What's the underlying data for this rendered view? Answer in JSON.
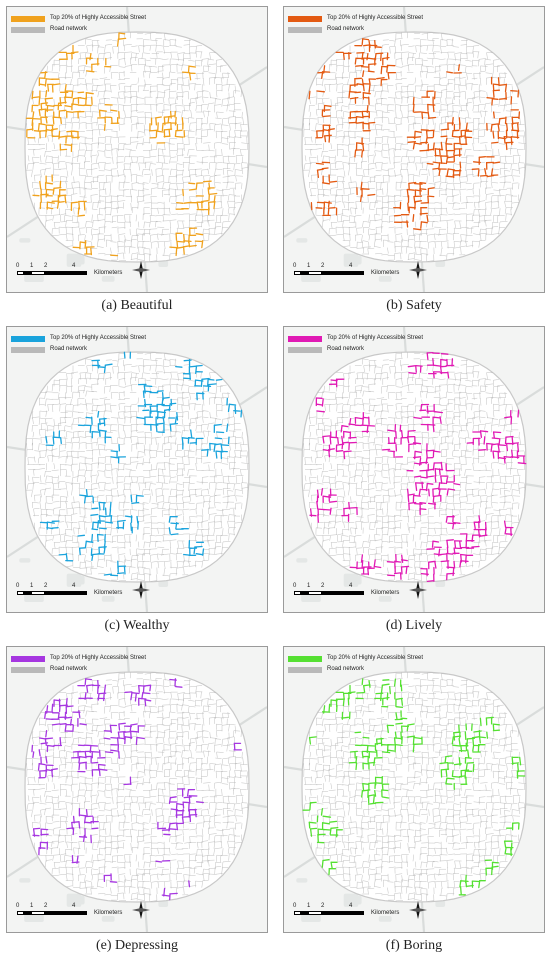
{
  "legend": {
    "top_label": "Top 20% of Highly Accessible Street",
    "road_label": "Road network"
  },
  "scale": {
    "ticks": [
      "0",
      "1",
      "2",
      "4"
    ],
    "unit": "Kilometers"
  },
  "colors": {
    "road": "#b9b9b9",
    "background": "#f3f4f3"
  },
  "panels": [
    {
      "caption": "(a) Beautiful",
      "highlight_color": "#f0a21e",
      "seed": 11
    },
    {
      "caption": "(b) Safety",
      "highlight_color": "#e35a12",
      "seed": 23
    },
    {
      "caption": "(c) Wealthy",
      "highlight_color": "#1aa3dc",
      "seed": 37
    },
    {
      "caption": "(d) Lively",
      "highlight_color": "#e01ab4",
      "seed": 41
    },
    {
      "caption": "(e) Depressing",
      "highlight_color": "#a637e0",
      "seed": 53
    },
    {
      "caption": "(f) Boring",
      "highlight_color": "#55e032",
      "seed": 67
    }
  ]
}
